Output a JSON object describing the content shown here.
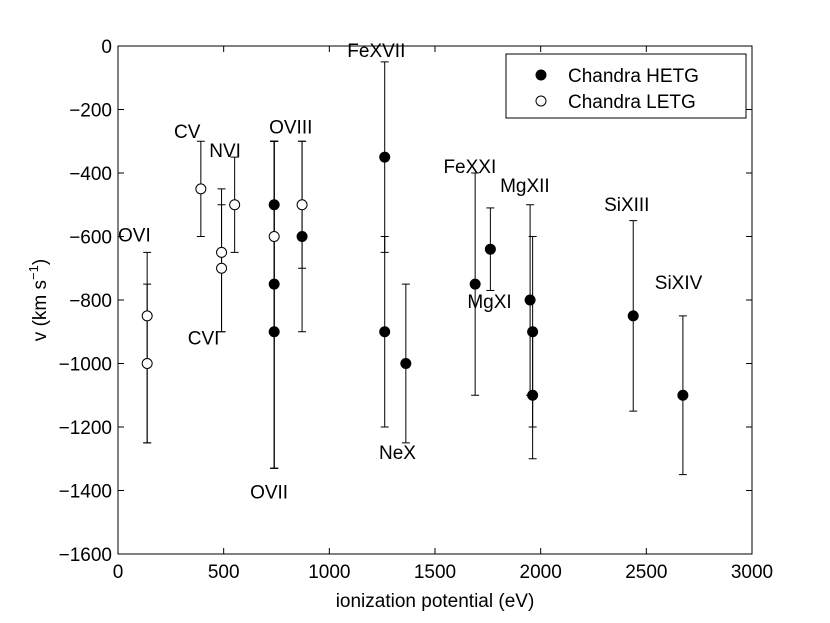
{
  "chart_data": {
    "type": "scatter",
    "title": "",
    "xlabel": "ionization potential (eV)",
    "ylabel_main": "v (km s",
    "ylabel_sup": "−1",
    "ylabel_close": ")",
    "xlim": [
      0,
      3000
    ],
    "ylim": [
      -1600,
      0
    ],
    "grid": false,
    "legend_position": "top-right",
    "x_ticks": [
      0,
      500,
      1000,
      1500,
      2000,
      2500,
      3000
    ],
    "x_tick_labels": [
      "0",
      "500",
      "1000",
      "1500",
      "2000",
      "2500",
      "3000"
    ],
    "y_ticks": [
      0,
      -200,
      -400,
      -600,
      -800,
      -1000,
      -1200,
      -1400,
      -1600
    ],
    "y_tick_labels": [
      "0",
      "−200",
      "−400",
      "−600",
      "−800",
      "−1000",
      "−1200",
      "−1400",
      "−1600"
    ],
    "series": [
      {
        "name": "Chandra HETG",
        "marker": "filled-circle",
        "points": [
          {
            "x": 739,
            "y": -500,
            "lo": -1330,
            "hi": -300
          },
          {
            "x": 739,
            "y": -750,
            "lo": -1330,
            "hi": -300
          },
          {
            "x": 739,
            "y": -900,
            "lo": -1330,
            "hi": -300
          },
          {
            "x": 871,
            "y": -600,
            "lo": -900,
            "hi": -300
          },
          {
            "x": 1262,
            "y": -350,
            "lo": -650,
            "hi": -50
          },
          {
            "x": 1262,
            "y": -900,
            "lo": -1200,
            "hi": -600
          },
          {
            "x": 1362,
            "y": -1000,
            "lo": -1250,
            "hi": -750
          },
          {
            "x": 1690,
            "y": -750,
            "lo": -1100,
            "hi": -400
          },
          {
            "x": 1762,
            "y": -640,
            "lo": -770,
            "hi": -510
          },
          {
            "x": 1950,
            "y": -800,
            "lo": -1100,
            "hi": -500
          },
          {
            "x": 1962,
            "y": -900,
            "lo": -1200,
            "hi": -600
          },
          {
            "x": 1962,
            "y": -1100,
            "lo": -1300,
            "hi": -900
          },
          {
            "x": 2438,
            "y": -850,
            "lo": -1150,
            "hi": -550
          },
          {
            "x": 2673,
            "y": -1100,
            "lo": -1350,
            "hi": -850
          }
        ]
      },
      {
        "name": "Chandra LETG",
        "marker": "open-circle",
        "points": [
          {
            "x": 138,
            "y": -850,
            "lo": -1250,
            "hi": -650
          },
          {
            "x": 138,
            "y": -1000,
            "lo": -1250,
            "hi": -750
          },
          {
            "x": 392,
            "y": -450,
            "lo": -600,
            "hi": -300
          },
          {
            "x": 490,
            "y": -650,
            "lo": -900,
            "hi": -450
          },
          {
            "x": 490,
            "y": -700,
            "lo": -900,
            "hi": -500
          },
          {
            "x": 552,
            "y": -500,
            "lo": -650,
            "hi": -350
          },
          {
            "x": 739,
            "y": -600,
            "lo": -900,
            "hi": -300
          },
          {
            "x": 871,
            "y": -500,
            "lo": -700,
            "hi": -300
          }
        ]
      }
    ],
    "annotations": [
      {
        "text": "OVI",
        "x": 0,
        "y": -615
      },
      {
        "text": "CV",
        "x": 265,
        "y": -290
      },
      {
        "text": "NVI",
        "x": 432,
        "y": -350
      },
      {
        "text": "CVI",
        "x": 330,
        "y": -940
      },
      {
        "text": "OVIII",
        "x": 715,
        "y": -275
      },
      {
        "text": "OVII",
        "x": 625,
        "y": -1425
      },
      {
        "text": "FeXVII",
        "x": 1085,
        "y": -35
      },
      {
        "text": "NeX",
        "x": 1235,
        "y": -1300
      },
      {
        "text": "FeXXI",
        "x": 1540,
        "y": -400
      },
      {
        "text": "MgXII",
        "x": 1808,
        "y": -460
      },
      {
        "text": "MgXI",
        "x": 1653,
        "y": -825
      },
      {
        "text": "SiXIII",
        "x": 2300,
        "y": -520
      },
      {
        "text": "SiXIV",
        "x": 2540,
        "y": -765
      }
    ]
  }
}
